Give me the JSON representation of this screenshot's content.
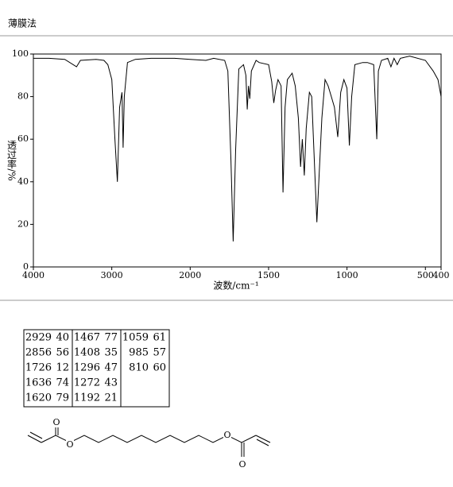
{
  "chart_data": {
    "type": "line",
    "title": "薄膜法",
    "xlabel": "波数/cm⁻¹",
    "ylabel": "透过率/%",
    "x": [
      4000,
      3800,
      3600,
      3450,
      3400,
      3200,
      3100,
      3050,
      3000,
      2960,
      2929,
      2900,
      2870,
      2856,
      2840,
      2800,
      2700,
      2500,
      2200,
      2000,
      1900,
      1850,
      1780,
      1760,
      1740,
      1726,
      1710,
      1690,
      1660,
      1645,
      1636,
      1628,
      1620,
      1610,
      1580,
      1560,
      1500,
      1480,
      1467,
      1455,
      1440,
      1420,
      1408,
      1395,
      1380,
      1350,
      1330,
      1310,
      1296,
      1285,
      1272,
      1260,
      1240,
      1225,
      1192,
      1160,
      1140,
      1120,
      1100,
      1080,
      1059,
      1040,
      1020,
      1000,
      985,
      970,
      950,
      900,
      870,
      830,
      810,
      800,
      780,
      740,
      720,
      700,
      680,
      660,
      600,
      500,
      450,
      420,
      400
    ],
    "values": [
      98,
      98,
      97.5,
      94,
      97,
      97.5,
      97,
      95,
      88,
      60,
      40,
      75,
      82,
      56,
      80,
      96,
      97.5,
      98,
      98,
      97.5,
      97,
      98,
      97,
      92,
      50,
      12,
      55,
      93,
      95,
      90,
      74,
      85,
      79,
      92,
      97,
      96,
      95,
      87,
      77,
      83,
      88,
      85,
      35,
      75,
      88,
      91,
      85,
      70,
      47,
      60,
      43,
      65,
      82,
      80,
      21,
      70,
      88,
      85,
      80,
      75,
      61,
      82,
      88,
      84,
      57,
      80,
      95,
      96,
      96,
      95,
      60,
      92,
      97,
      98,
      94,
      98,
      95,
      98,
      99,
      97,
      92,
      88,
      80
    ],
    "color": "#000000",
    "xlim": [
      4000,
      400
    ],
    "xticks": [
      4000,
      3000,
      2000,
      1500,
      1000,
      500,
      400
    ],
    "x_scale_break": 2000,
    "x_scale_ratio": 2,
    "ylim": [
      0,
      100
    ],
    "yticks": [
      0,
      20,
      40,
      60,
      80,
      100
    ],
    "grid": false
  },
  "peak_table": {
    "columns": [
      [
        [
          2929,
          40
        ],
        [
          2856,
          56
        ],
        [
          1726,
          12
        ],
        [
          1636,
          74
        ],
        [
          1620,
          79
        ]
      ],
      [
        [
          1467,
          77
        ],
        [
          1408,
          35
        ],
        [
          1296,
          47
        ],
        [
          1272,
          43
        ],
        [
          1192,
          21
        ]
      ],
      [
        [
          1059,
          61
        ],
        [
          985,
          57
        ],
        [
          810,
          60
        ]
      ]
    ]
  },
  "structure": {
    "atom_labels": [
      "O",
      "O",
      "O",
      "O"
    ]
  }
}
